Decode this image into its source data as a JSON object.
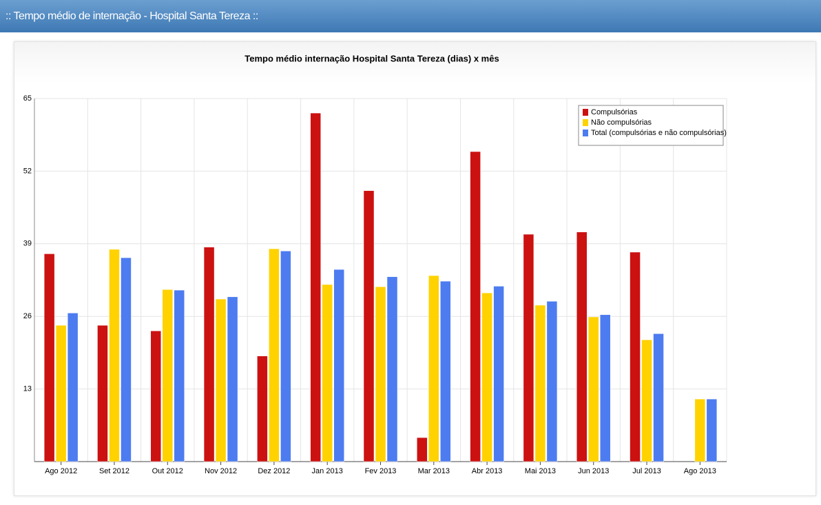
{
  "panel_title": ":: Tempo médio de internação - Hospital Santa Tereza ::",
  "chart_data": {
    "type": "bar",
    "title": "Tempo médio internação Hospital Santa Tereza (dias) x mês",
    "categories": [
      "Ago 2012",
      "Set 2012",
      "Out 2012",
      "Nov 2012",
      "Dez 2012",
      "Jan 2013",
      "Fev 2013",
      "Mar 2013",
      "Abr 2013",
      "Mai 2013",
      "Jun 2013",
      "Jul 2013",
      "Ago 2013"
    ],
    "series": [
      {
        "name": "Compulsórias",
        "color": "#cc1111",
        "values": [
          37.2,
          24.4,
          23.4,
          38.4,
          18.9,
          62.4,
          48.5,
          4.3,
          55.5,
          40.7,
          41.1,
          37.5,
          null
        ]
      },
      {
        "name": "Não compulsórias",
        "color": "#ffd200",
        "values": [
          24.4,
          38.0,
          30.8,
          29.1,
          38.1,
          31.7,
          31.3,
          33.3,
          30.2,
          28.0,
          25.9,
          21.8,
          11.2
        ]
      },
      {
        "name": "Total (compulsórias e não compulsórias)",
        "color": "#4d7cf0",
        "values": [
          26.6,
          36.5,
          30.7,
          29.5,
          37.7,
          34.4,
          33.1,
          32.3,
          31.4,
          28.7,
          26.3,
          22.9,
          11.2
        ]
      }
    ],
    "ylim": [
      0,
      65
    ],
    "yticks": [
      13,
      26,
      39,
      52,
      65
    ],
    "grid": true,
    "legend": "top-right"
  }
}
